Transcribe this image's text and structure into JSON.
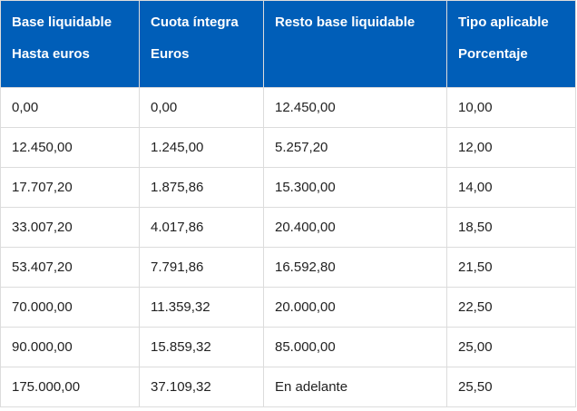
{
  "table": {
    "headers": [
      {
        "line1": "Base liquidable",
        "line2": "Hasta euros"
      },
      {
        "line1": "Cuota íntegra",
        "line2": "Euros"
      },
      {
        "line1": "Resto base liquidable",
        "line2": ""
      },
      {
        "line1": "Tipo aplicable",
        "line2": "Porcentaje"
      }
    ],
    "rows": [
      [
        "0,00",
        "0,00",
        "12.450,00",
        "10,00"
      ],
      [
        "12.450,00",
        "1.245,00",
        "5.257,20",
        "12,00"
      ],
      [
        "17.707,20",
        "1.875,86",
        "15.300,00",
        "14,00"
      ],
      [
        "33.007,20",
        "4.017,86",
        "20.400,00",
        "18,50"
      ],
      [
        "53.407,20",
        "7.791,86",
        "16.592,80",
        "21,50"
      ],
      [
        "70.000,00",
        "11.359,32",
        "20.000,00",
        "22,50"
      ],
      [
        "90.000,00",
        "15.859,32",
        "85.000,00",
        "25,00"
      ],
      [
        "175.000,00",
        "37.109,32",
        "En adelante",
        "25,50"
      ]
    ]
  },
  "colors": {
    "header_background": "#005eb8",
    "header_text": "#ffffff",
    "border": "#dcdcdc"
  }
}
